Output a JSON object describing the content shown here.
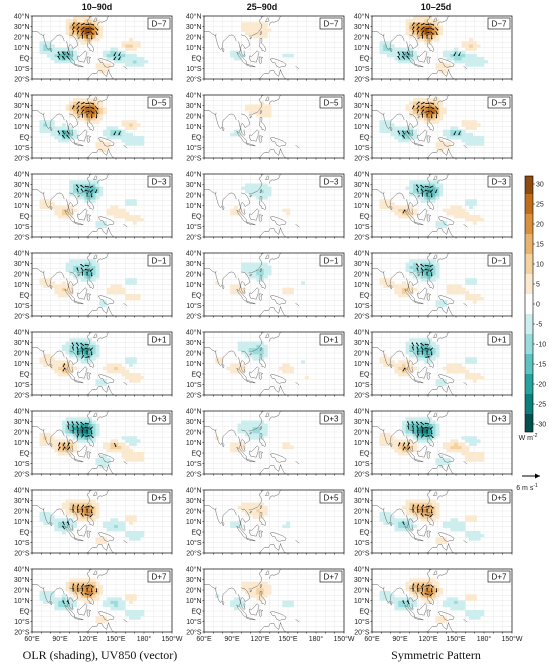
{
  "columns": [
    "10–90d",
    "25–90d",
    "10–25d"
  ],
  "lags": [
    "D−7",
    "D−5",
    "D−3",
    "D−1",
    "D+1",
    "D+3",
    "D+5",
    "D+7"
  ],
  "lat_labels": [
    "40°N",
    "30°N",
    "20°N",
    "10°N",
    "EQ",
    "10°S",
    "20°S"
  ],
  "lat_values": [
    40,
    30,
    20,
    10,
    0,
    -10,
    -20
  ],
  "lon_labels": [
    "60°E",
    "90°E",
    "120°E",
    "150°E",
    "180°",
    "150°W"
  ],
  "lon_values": [
    60,
    90,
    120,
    150,
    180,
    210
  ],
  "colorbar": {
    "ticks": [
      30,
      25,
      20,
      15,
      10,
      5,
      0,
      -5,
      -10,
      -15,
      -20,
      -25,
      -30
    ],
    "tick_labels": [
      "30",
      "25",
      "20",
      "15",
      "10",
      "5",
      "0",
      "-5",
      "-10",
      "-15",
      "-20",
      "-25",
      "-30"
    ],
    "range": [
      -32,
      32
    ],
    "unit": "W m",
    "unit_exp": "-2",
    "colors_positive": [
      "#fbe9cf",
      "#f4d19f",
      "#e9b36e",
      "#d98f3d",
      "#bf6c1b",
      "#8f4a0d"
    ],
    "colors_negative": [
      "#cdeeee",
      "#9adcdb",
      "#5ec3c1",
      "#26a3a0",
      "#0b7f7c",
      "#04504e"
    ]
  },
  "vector_key": {
    "label": "6 m s",
    "exp": "-1"
  },
  "captions": {
    "left": "OLR (shading), UV850 (vector)",
    "right": "Symmetric Pattern"
  },
  "fields": {
    "amplitude": [
      [
        1.0,
        0.9,
        0.55,
        0.5,
        0.65,
        0.9,
        0.7,
        0.75
      ],
      [
        0.25,
        0.2,
        0.25,
        0.3,
        0.35,
        0.3,
        0.25,
        0.3
      ],
      [
        0.95,
        0.85,
        0.6,
        0.55,
        0.6,
        0.85,
        0.65,
        0.7
      ]
    ],
    "sign": [
      1,
      1,
      -1,
      -1,
      -1,
      -1,
      1,
      1
    ]
  }
}
